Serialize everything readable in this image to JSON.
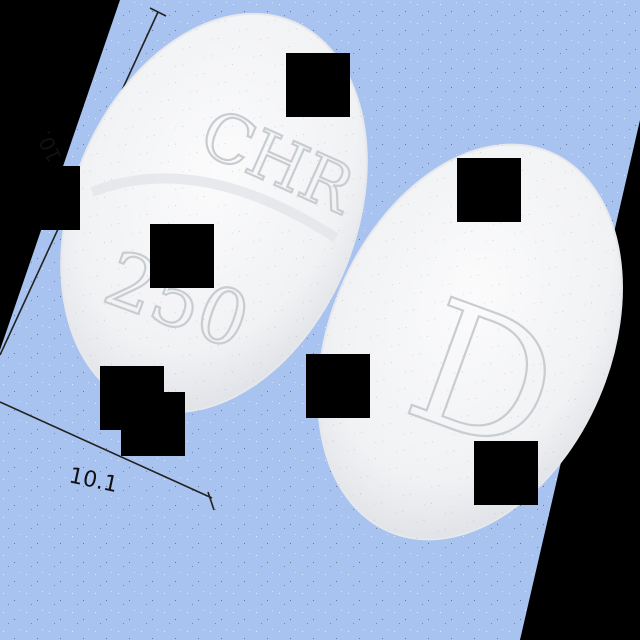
{
  "photo": {
    "subject": "two white oval tablets on a blue background",
    "colors": {
      "outer_background": "#000000",
      "backdrop": "#a8c3ef",
      "tablet": "#f4f5f6",
      "tablet_shade": "#dfe2e6",
      "imprint": "#c9ccd0",
      "ruler_line": "#222222",
      "occluder": "#000000"
    }
  },
  "dimensions": {
    "height_label": "10.",
    "width_label": "10.1"
  },
  "tablet_front": {
    "imprint_top": "CHR",
    "imprint_bottom": "250"
  },
  "tablet_back": {
    "imprint": "D"
  }
}
